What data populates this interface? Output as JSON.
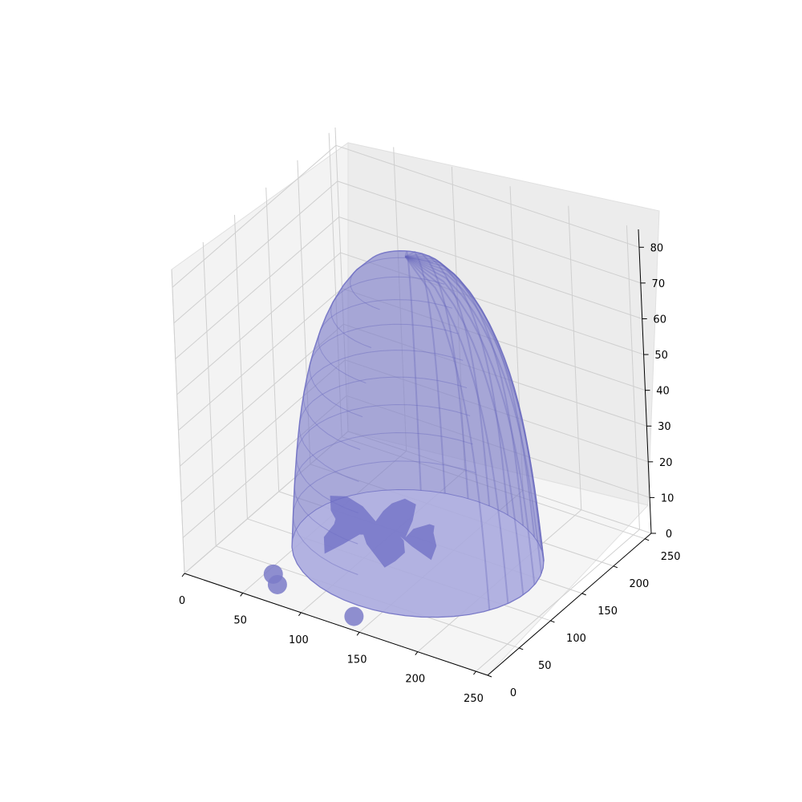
{
  "chart_data": {
    "type": "3d-surface",
    "title": "",
    "xlabel": "",
    "ylabel": "",
    "zlabel": "",
    "xlim": [
      0,
      260
    ],
    "ylim": [
      0,
      260
    ],
    "zlim": [
      0,
      85
    ],
    "x_ticks": [
      "0",
      "50",
      "100",
      "150",
      "200",
      "250"
    ],
    "y_ticks": [
      "0",
      "50",
      "100",
      "150",
      "200",
      "250"
    ],
    "z_ticks": [
      "0",
      "10",
      "20",
      "30",
      "40",
      "50",
      "60",
      "70",
      "80"
    ],
    "grid": true,
    "surface": {
      "shape": "dome-shaped isosurface",
      "color": "#7b7bc8",
      "base_center": [
        130,
        130
      ],
      "base_radius": 95,
      "height": 83,
      "small_blobs": 3
    }
  }
}
